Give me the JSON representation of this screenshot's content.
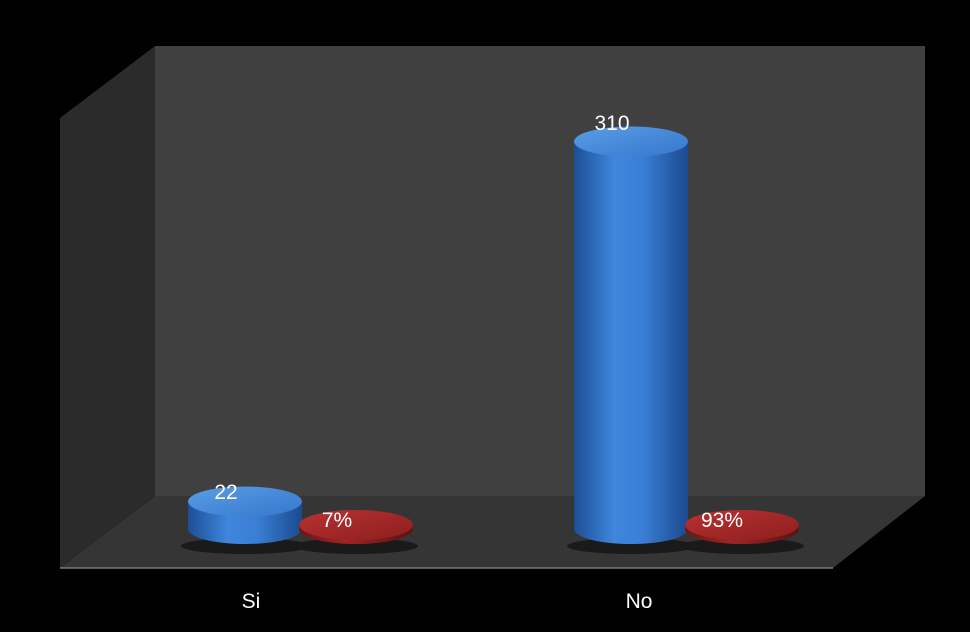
{
  "chart_data": {
    "type": "bar",
    "categories": [
      "Si",
      "No"
    ],
    "series": [
      {
        "values": [
          22,
          310
        ],
        "labels": [
          "22",
          "310"
        ],
        "color": "#3a7fd5"
      },
      {
        "values": [
          7,
          93
        ],
        "labels": [
          "7%",
          "93%"
        ],
        "color": "#a32424"
      }
    ],
    "title": "",
    "xlabel": "",
    "ylabel": "",
    "ylim": [
      0,
      350
    ],
    "grid": false,
    "legend": "none",
    "three_d": true,
    "colors": {
      "background": "#000000",
      "back_wall": "#404040",
      "side_wall": "#2b2b2b",
      "floor": "#353535",
      "text": "#ffffff"
    }
  }
}
